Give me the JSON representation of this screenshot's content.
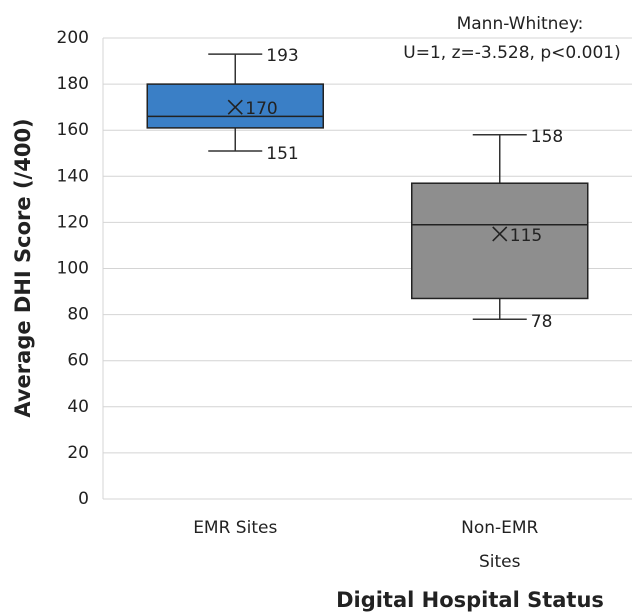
{
  "chart_data": {
    "type": "box",
    "xlabel": "Digital Hospital Status",
    "ylabel": "Average DHI Score (/400)",
    "annotation": [
      "Mann-Whitney:",
      "U=1, z=-3.528, p<0.001)"
    ],
    "categories": [
      "EMR Sites",
      "Non-EMR Sites"
    ],
    "boxes": [
      {
        "min": 151,
        "q1": 161,
        "median": 166,
        "q3": 180,
        "max": 193,
        "mean": 170,
        "color": "#3a7fc6"
      },
      {
        "min": 78,
        "q1": 87,
        "median": 119,
        "q3": 137,
        "max": 158,
        "mean": 115,
        "color": "#8e8e8e"
      }
    ],
    "ylim": [
      0,
      200
    ],
    "yticks": [
      0,
      20,
      40,
      60,
      80,
      100,
      120,
      140,
      160,
      180,
      200
    ],
    "grid": true
  }
}
